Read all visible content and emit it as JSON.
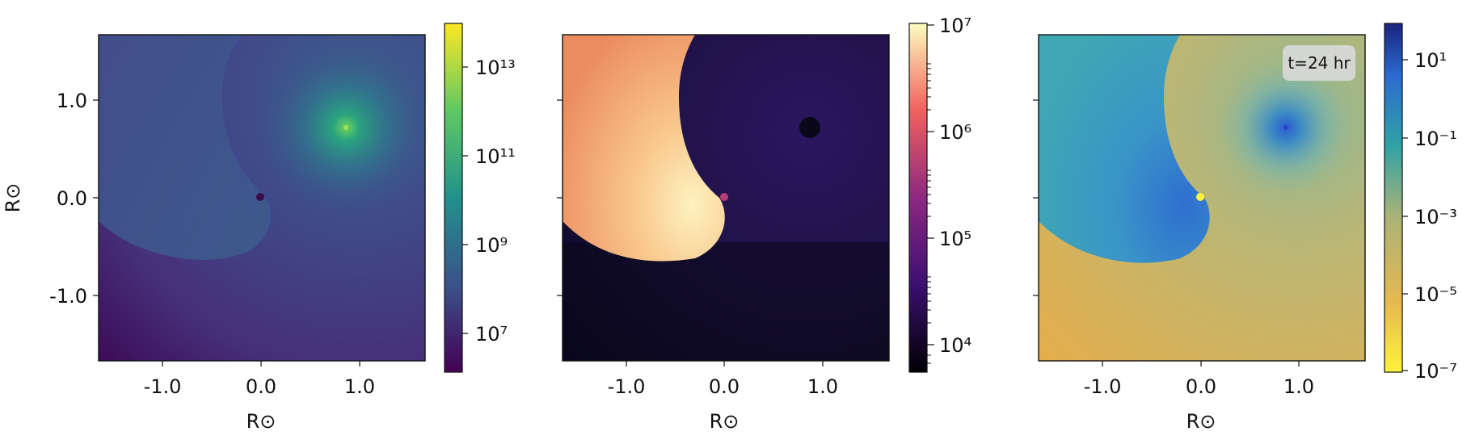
{
  "chart_data": [
    {
      "type": "heatmap",
      "xlabel": "R⊙",
      "ylabel": "R⊙",
      "xlim": [
        -1.65,
        1.65
      ],
      "ylim": [
        -1.65,
        1.65
      ],
      "xticks": [
        "-1.0",
        "0.0",
        "1.0"
      ],
      "yticks": [
        "1.0",
        "0.0",
        "-1.0"
      ],
      "colormap": "viridis",
      "colorbar": {
        "scale": "log",
        "range": [
          1000000.0,
          100000000000000.0
        ],
        "ticks": [
          "10¹³",
          "10¹¹",
          "10⁹",
          "10⁷"
        ]
      },
      "features": [
        {
          "label": "",
          "x": 0.87,
          "y": 0.7,
          "kind": "bright source"
        },
        {
          "label": "",
          "x": 0.0,
          "y": 0.0,
          "kind": "dark point"
        }
      ]
    },
    {
      "type": "heatmap",
      "xlabel": "R⊙",
      "ylabel": "",
      "xlim": [
        -1.65,
        1.65
      ],
      "ylim": [
        -1.65,
        1.65
      ],
      "xticks": [
        "-1.0",
        "0.0",
        "1.0"
      ],
      "colormap": "magma",
      "colorbar": {
        "scale": "log",
        "range": [
          5000.0,
          10000000.0
        ],
        "ticks": [
          "10⁷",
          "10⁶",
          "10⁵",
          "10⁴"
        ]
      },
      "features": [
        {
          "label": "",
          "x": 0.87,
          "y": 0.7,
          "kind": "dark disk"
        },
        {
          "label": "",
          "x": 0.0,
          "y": 0.0,
          "kind": "pink point"
        }
      ]
    },
    {
      "type": "heatmap",
      "xlabel": "R⊙",
      "ylabel": "",
      "xlim": [
        -1.65,
        1.65
      ],
      "ylim": [
        -1.65,
        1.65
      ],
      "xticks": [
        "-1.0",
        "0.0",
        "1.0"
      ],
      "colormap": "cividis-reversed",
      "annotation": "t=24 hr",
      "colorbar": {
        "scale": "log",
        "range": [
          1e-07,
          100.0
        ],
        "ticks": [
          "10¹",
          "10⁻¹",
          "10⁻³",
          "10⁻⁵",
          "10⁻⁷"
        ]
      },
      "features": [
        {
          "label": "",
          "x": 0.87,
          "y": 0.7,
          "kind": "blue source"
        },
        {
          "label": "",
          "x": 0.0,
          "y": 0.0,
          "kind": "yellow point"
        }
      ]
    }
  ]
}
